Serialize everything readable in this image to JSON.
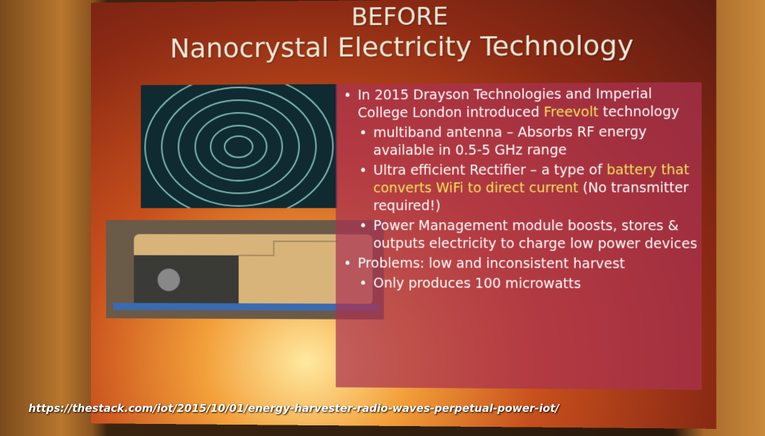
{
  "slide": {
    "title_line1": "BEFORE",
    "title_line2": "Nanocrystal Electricity Technology",
    "bullets": [
      {
        "parts": [
          {
            "text": "In 2015 Drayson Technologies and Imperial College London introduced ",
            "color": "#ffffff"
          },
          {
            "text": "Freevolt",
            "color": "#f3e35c"
          },
          {
            "text": " technology",
            "color": "#ffffff"
          }
        ],
        "sub": [
          {
            "parts": [
              {
                "text": "multiband antenna – Absorbs RF energy available in 0.5-5 GHz range",
                "color": "#ffffff"
              }
            ]
          },
          {
            "parts": [
              {
                "text": "Ultra efficient Rectifier – a type of ",
                "color": "#ffffff"
              },
              {
                "text": "battery that converts WiFi to direct current",
                "color": "#f3e35c"
              },
              {
                "text": " (No transmitter required!)",
                "color": "#ffffff"
              }
            ]
          },
          {
            "parts": [
              {
                "text": "Power Management module boosts, stores & outputs electricity to charge low power devices",
                "color": "#ffffff"
              }
            ]
          }
        ]
      },
      {
        "parts": [
          {
            "text": "Problems: low and inconsistent harvest",
            "color": "#ffffff"
          }
        ],
        "sub": [
          {
            "parts": [
              {
                "text": "Only produces 100 microwatts",
                "color": "#ffffff"
              }
            ]
          }
        ]
      }
    ],
    "url": "https://thestack.com/iot/2015/10/01/energy-harvester-radio-waves-perpetual-power-iot/"
  }
}
